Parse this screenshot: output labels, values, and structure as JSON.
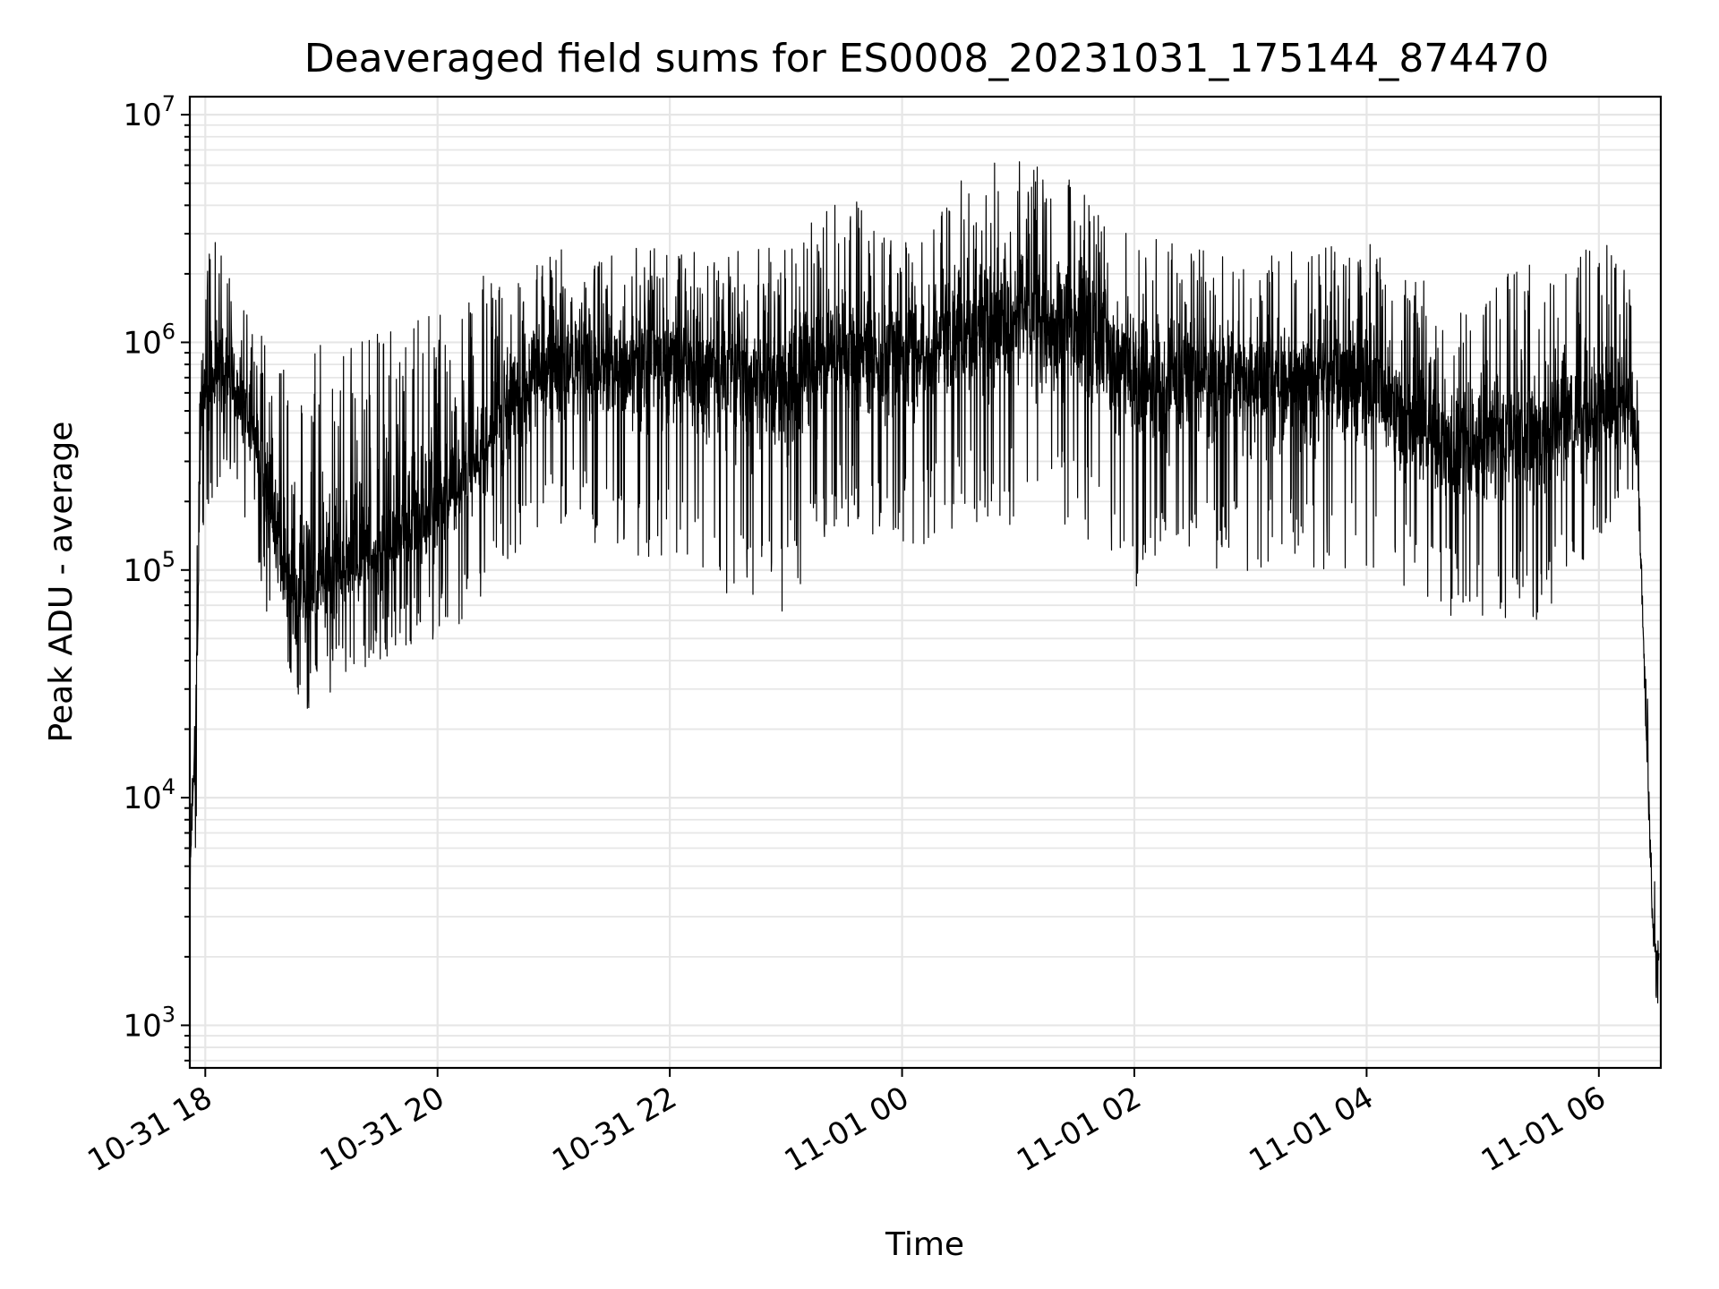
{
  "chart_data": {
    "type": "line",
    "title": "Deaveraged field sums for ES0008_20231031_175144_874470",
    "xlabel": "Time",
    "ylabel": "Peak ADU - average",
    "yscale": "log",
    "ylim": [
      650,
      12000000
    ],
    "xlim": [
      "2023-10-31 17:52",
      "2023-11-01 06:32"
    ],
    "grid": "on (major and minor)",
    "x_ticks": [
      {
        "value": "2023-10-31 18:00",
        "label": "10-31 18"
      },
      {
        "value": "2023-10-31 20:00",
        "label": "10-31 20"
      },
      {
        "value": "2023-10-31 22:00",
        "label": "10-31 22"
      },
      {
        "value": "2023-11-01 00:00",
        "label": "11-01 00"
      },
      {
        "value": "2023-11-01 02:00",
        "label": "11-01 02"
      },
      {
        "value": "2023-11-01 04:00",
        "label": "11-01 04"
      },
      {
        "value": "2023-11-01 06:00",
        "label": "11-01 06"
      }
    ],
    "y_ticks": [
      {
        "value": 1000,
        "base": "10",
        "exp": "3"
      },
      {
        "value": 10000,
        "base": "10",
        "exp": "4"
      },
      {
        "value": 100000,
        "base": "10",
        "exp": "5"
      },
      {
        "value": 1000000,
        "base": "10",
        "exp": "6"
      },
      {
        "value": 10000000,
        "base": "10",
        "exp": "7"
      }
    ],
    "series": [
      {
        "color": "#000000",
        "envelope": [
          {
            "x": "2023-10-31 17:52",
            "low": 1500,
            "typ": 4000,
            "high": 8000
          },
          {
            "x": "2023-10-31 17:55",
            "low": 5000,
            "typ": 20000,
            "high": 50000
          },
          {
            "x": "2023-10-31 17:58",
            "low": 150000,
            "typ": 600000,
            "high": 2200000
          },
          {
            "x": "2023-10-31 18:05",
            "low": 200000,
            "typ": 700000,
            "high": 3200000
          },
          {
            "x": "2023-10-31 18:15",
            "low": 200000,
            "typ": 600000,
            "high": 1600000
          },
          {
            "x": "2023-10-31 18:25",
            "low": 150000,
            "typ": 400000,
            "high": 1200000
          },
          {
            "x": "2023-10-31 18:35",
            "low": 40000,
            "typ": 150000,
            "high": 900000
          },
          {
            "x": "2023-10-31 18:45",
            "low": 20000,
            "typ": 80000,
            "high": 1000000
          },
          {
            "x": "2023-10-31 19:00",
            "low": 25000,
            "typ": 90000,
            "high": 1000000
          },
          {
            "x": "2023-10-31 19:20",
            "low": 35000,
            "typ": 110000,
            "high": 1100000
          },
          {
            "x": "2023-10-31 19:40",
            "low": 45000,
            "typ": 140000,
            "high": 1200000
          },
          {
            "x": "2023-10-31 20:00",
            "low": 50000,
            "typ": 200000,
            "high": 1500000
          },
          {
            "x": "2023-10-31 20:20",
            "low": 60000,
            "typ": 300000,
            "high": 2000000
          },
          {
            "x": "2023-10-31 20:40",
            "low": 100000,
            "typ": 600000,
            "high": 1800000
          },
          {
            "x": "2023-10-31 21:00",
            "low": 150000,
            "typ": 800000,
            "high": 2600000
          },
          {
            "x": "2023-10-31 22:00",
            "low": 100000,
            "typ": 850000,
            "high": 2600000
          },
          {
            "x": "2023-10-31 23:00",
            "low": 60000,
            "typ": 700000,
            "high": 2600000
          },
          {
            "x": "2023-10-31 23:30",
            "low": 150000,
            "typ": 900000,
            "high": 5000000
          },
          {
            "x": "2023-11-01 00:00",
            "low": 120000,
            "typ": 900000,
            "high": 3000000
          },
          {
            "x": "2023-11-01 00:30",
            "low": 150000,
            "typ": 1100000,
            "high": 5500000
          },
          {
            "x": "2023-11-01 01:00",
            "low": 150000,
            "typ": 1300000,
            "high": 7000000
          },
          {
            "x": "2023-11-01 01:30",
            "low": 150000,
            "typ": 1200000,
            "high": 5000000
          },
          {
            "x": "2023-11-01 02:00",
            "low": 80000,
            "typ": 700000,
            "high": 3000000
          },
          {
            "x": "2023-11-01 03:00",
            "low": 100000,
            "typ": 700000,
            "high": 2500000
          },
          {
            "x": "2023-11-01 04:00",
            "low": 100000,
            "typ": 650000,
            "high": 2800000
          },
          {
            "x": "2023-11-01 04:45",
            "low": 60000,
            "typ": 350000,
            "high": 1500000
          },
          {
            "x": "2023-11-01 05:30",
            "low": 60000,
            "typ": 400000,
            "high": 2500000
          },
          {
            "x": "2023-11-01 06:15",
            "low": 200000,
            "typ": 550000,
            "high": 2800000
          },
          {
            "x": "2023-11-01 06:20",
            "low": 150000,
            "typ": 300000,
            "high": 800000
          },
          {
            "x": "2023-11-01 06:28",
            "low": 1300,
            "typ": 2500,
            "high": 5000
          },
          {
            "x": "2023-11-01 06:31",
            "low": 1200,
            "typ": 2000,
            "high": 4500
          }
        ]
      }
    ]
  }
}
